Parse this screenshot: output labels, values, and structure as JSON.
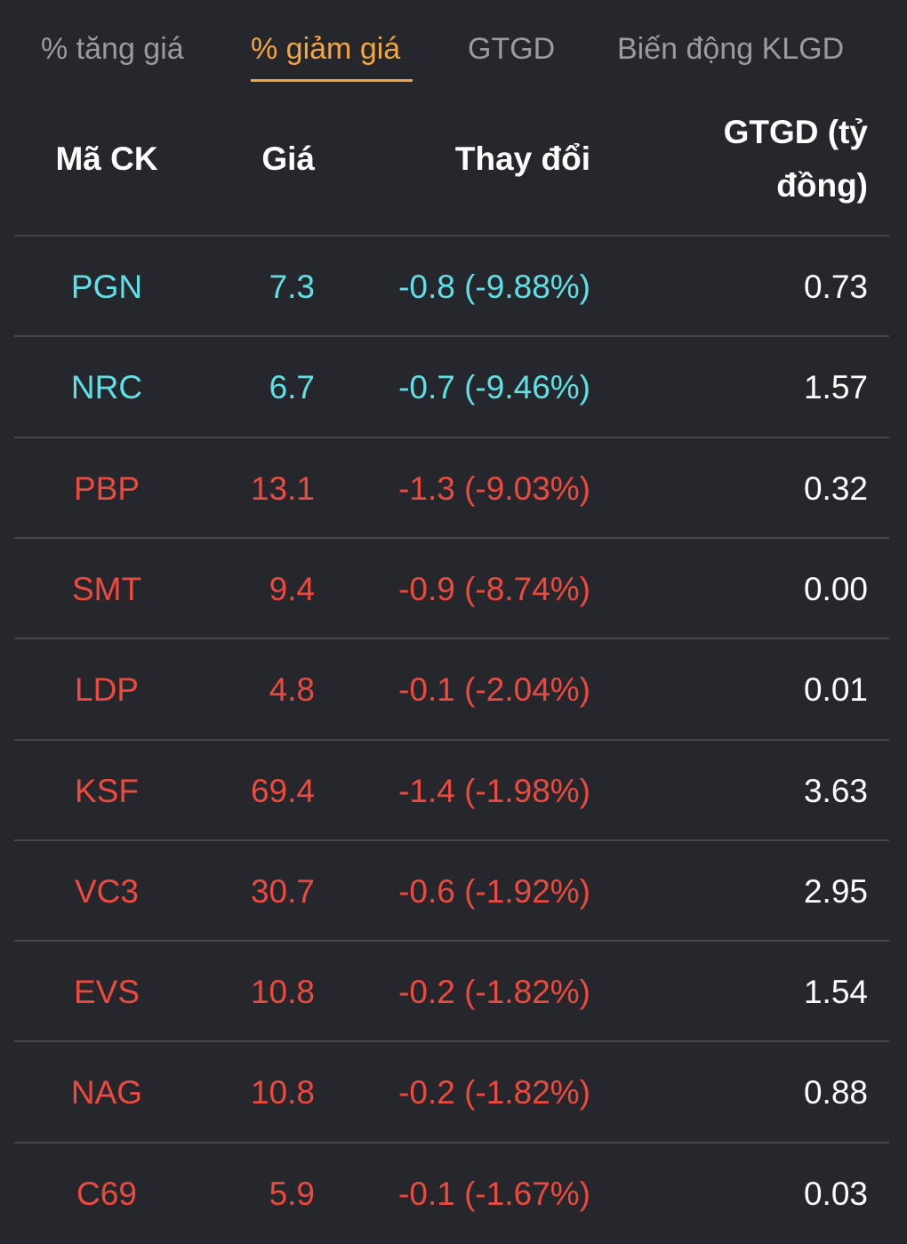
{
  "tabs": [
    {
      "label": "% tăng giá",
      "active": false
    },
    {
      "label": "% giảm giá",
      "active": true
    },
    {
      "label": "GTGD",
      "active": false
    },
    {
      "label": "Biến động KLGD",
      "active": false
    }
  ],
  "columns": {
    "code": "Mã CK",
    "price": "Giá",
    "change": "Thay đổi",
    "value_line1": "GTGD (tỷ",
    "value_line2": "đồng)"
  },
  "colors": {
    "floor": "#5ee0e6",
    "down": "#ec4a3f",
    "active_tab": "#f3a540"
  },
  "rows": [
    {
      "code": "PGN",
      "price": "7.3",
      "change": "-0.8 (-9.88%)",
      "value": "0.73",
      "status": "floor"
    },
    {
      "code": "NRC",
      "price": "6.7",
      "change": "-0.7 (-9.46%)",
      "value": "1.57",
      "status": "floor"
    },
    {
      "code": "PBP",
      "price": "13.1",
      "change": "-1.3 (-9.03%)",
      "value": "0.32",
      "status": "down"
    },
    {
      "code": "SMT",
      "price": "9.4",
      "change": "-0.9 (-8.74%)",
      "value": "0.00",
      "status": "down"
    },
    {
      "code": "LDP",
      "price": "4.8",
      "change": "-0.1 (-2.04%)",
      "value": "0.01",
      "status": "down"
    },
    {
      "code": "KSF",
      "price": "69.4",
      "change": "-1.4 (-1.98%)",
      "value": "3.63",
      "status": "down"
    },
    {
      "code": "VC3",
      "price": "30.7",
      "change": "-0.6 (-1.92%)",
      "value": "2.95",
      "status": "down"
    },
    {
      "code": "EVS",
      "price": "10.8",
      "change": "-0.2 (-1.82%)",
      "value": "1.54",
      "status": "down"
    },
    {
      "code": "NAG",
      "price": "10.8",
      "change": "-0.2 (-1.82%)",
      "value": "0.88",
      "status": "down"
    },
    {
      "code": "C69",
      "price": "5.9",
      "change": "-0.1 (-1.67%)",
      "value": "0.03",
      "status": "down"
    }
  ]
}
